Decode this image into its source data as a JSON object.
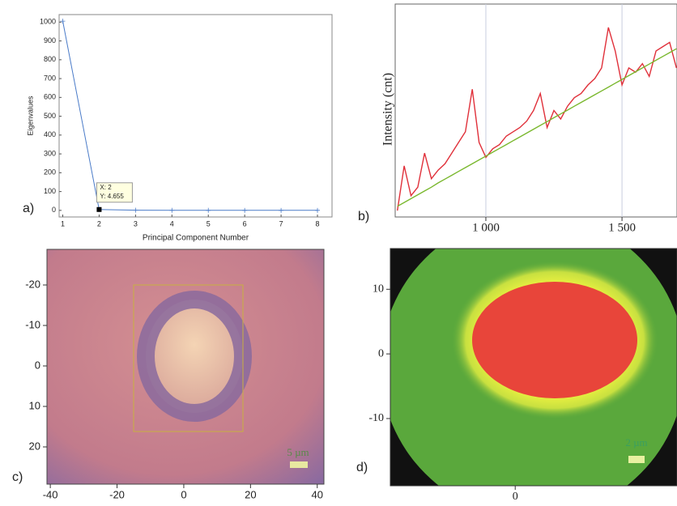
{
  "chart_data": [
    {
      "type": "line",
      "panel_label": "a)",
      "xlabel": "Principal Component Number",
      "ylabel": "Eigenvalues",
      "x": [
        1,
        2,
        3,
        4,
        5,
        6,
        7,
        8
      ],
      "series": [
        {
          "name": "eigenvalues",
          "color": "#4a7bc8",
          "values": [
            1005,
            4.655,
            1,
            0.5,
            0.3,
            0.2,
            0.1,
            0.1
          ]
        }
      ],
      "xlim": [
        0.9,
        8.4
      ],
      "ylim": [
        -35,
        1040
      ],
      "xticks": [
        1,
        2,
        3,
        4,
        5,
        6,
        7,
        8
      ],
      "yticks": [
        0,
        100,
        200,
        300,
        400,
        500,
        600,
        700,
        800,
        900,
        1000
      ],
      "annotations": [
        "X: 2",
        "Y: 4.655"
      ],
      "grid": false
    },
    {
      "type": "line",
      "panel_label": "b)",
      "ylabel": "Intensity (cnt)",
      "x": [
        675,
        700,
        725,
        750,
        775,
        800,
        825,
        850,
        875,
        900,
        925,
        950,
        975,
        1000,
        1025,
        1050,
        1075,
        1100,
        1125,
        1150,
        1175,
        1200,
        1225,
        1250,
        1275,
        1300,
        1325,
        1350,
        1375,
        1400,
        1425,
        1450,
        1475,
        1500,
        1525,
        1550,
        1575,
        1600,
        1625,
        1650,
        1675,
        1700
      ],
      "series": [
        {
          "name": "measured",
          "color": "#e0303a",
          "values": [
            3,
            24,
            10,
            14,
            30,
            18,
            22,
            25,
            30,
            35,
            40,
            60,
            35,
            28,
            32,
            34,
            38,
            40,
            42,
            45,
            50,
            58,
            42,
            50,
            46,
            52,
            56,
            58,
            62,
            65,
            70,
            89,
            78,
            62,
            70,
            68,
            72,
            66,
            78,
            80,
            82,
            70
          ]
        },
        {
          "name": "fit",
          "color": "#7ab82e",
          "values": [
            5,
            6.8,
            8.6,
            10.4,
            12.2,
            14,
            16,
            17.8,
            19.6,
            21.4,
            23.2,
            25,
            26.8,
            28.6,
            30.4,
            32.2,
            34,
            35.8,
            37.6,
            39.4,
            41.2,
            43,
            44.8,
            46.6,
            48.4,
            50.2,
            52,
            53.8,
            55.6,
            57.4,
            59.2,
            61,
            62.8,
            64.6,
            66.4,
            68.2,
            70,
            71.8,
            73.6,
            75.4,
            77.2,
            79
          ]
        }
      ],
      "xlim": [
        667,
        1702
      ],
      "ylim": [
        0,
        100
      ],
      "xticks": [
        {
          "value": 1000,
          "label": "1 000"
        },
        {
          "value": 1500,
          "label": "1 500"
        }
      ],
      "grid": true
    },
    {
      "type": "image",
      "panel_label": "c)",
      "scalebar": "5 µm",
      "xlim": [
        -41,
        42
      ],
      "ylim": [
        29.2,
        -28.8
      ],
      "xticks": [
        -40,
        -20,
        0,
        20,
        40
      ],
      "yticks": [
        -20,
        -10,
        0,
        10,
        20
      ]
    },
    {
      "type": "image",
      "panel_label": "d)",
      "scalebar": "2 µm",
      "xlim": [
        -19.3,
        25
      ],
      "ylim": [
        -20.4,
        16.3
      ],
      "xticks": [
        0
      ],
      "yticks": [
        10,
        0,
        -10
      ]
    }
  ]
}
